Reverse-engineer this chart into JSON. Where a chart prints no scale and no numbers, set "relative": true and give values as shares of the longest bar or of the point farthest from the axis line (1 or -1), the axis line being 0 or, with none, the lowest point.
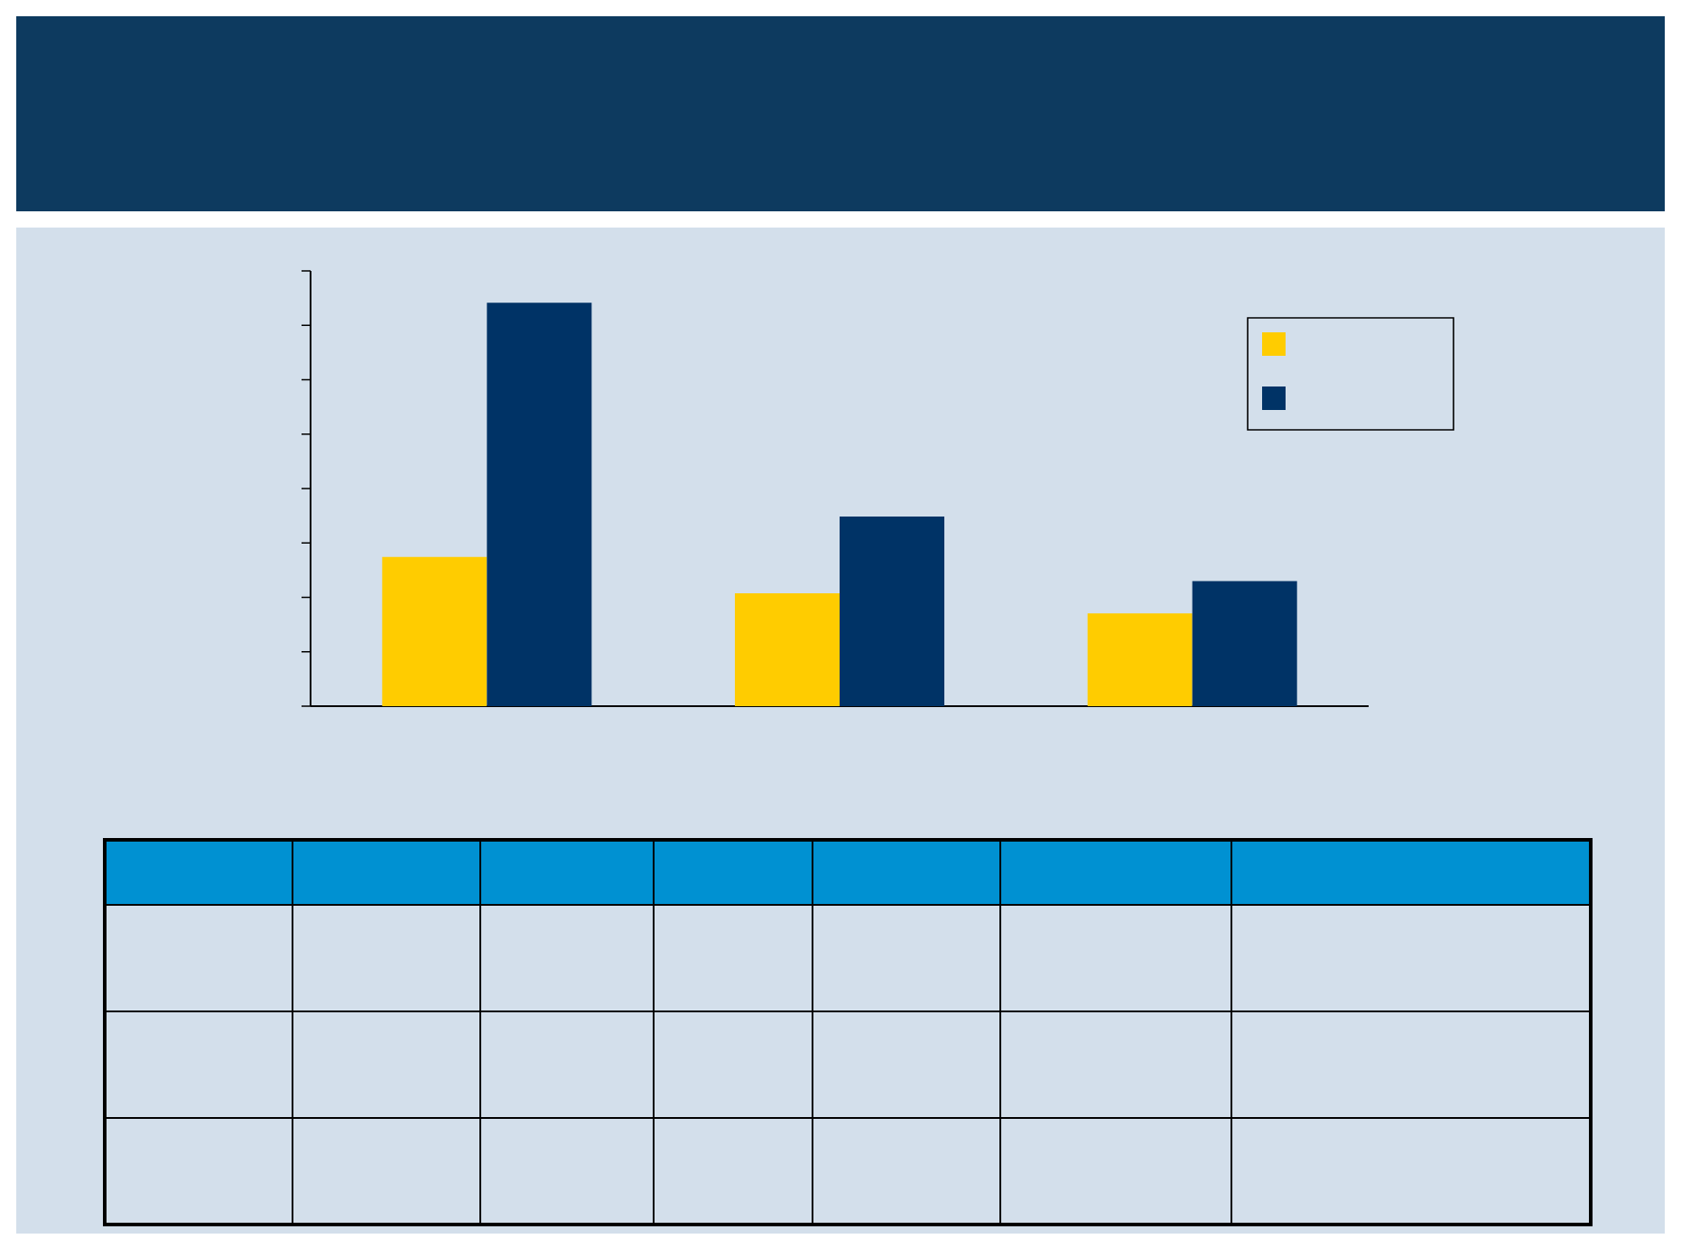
{
  "chart_data": {
    "type": "bar",
    "categories": [
      null,
      null,
      null
    ],
    "series": [
      {
        "color": "#ffcc00",
        "values": [
          0.37,
          0.28,
          0.23
        ]
      },
      {
        "color": "#003366",
        "values": [
          1,
          0.47,
          0.31
        ]
      }
    ],
    "relative": true
  }
}
